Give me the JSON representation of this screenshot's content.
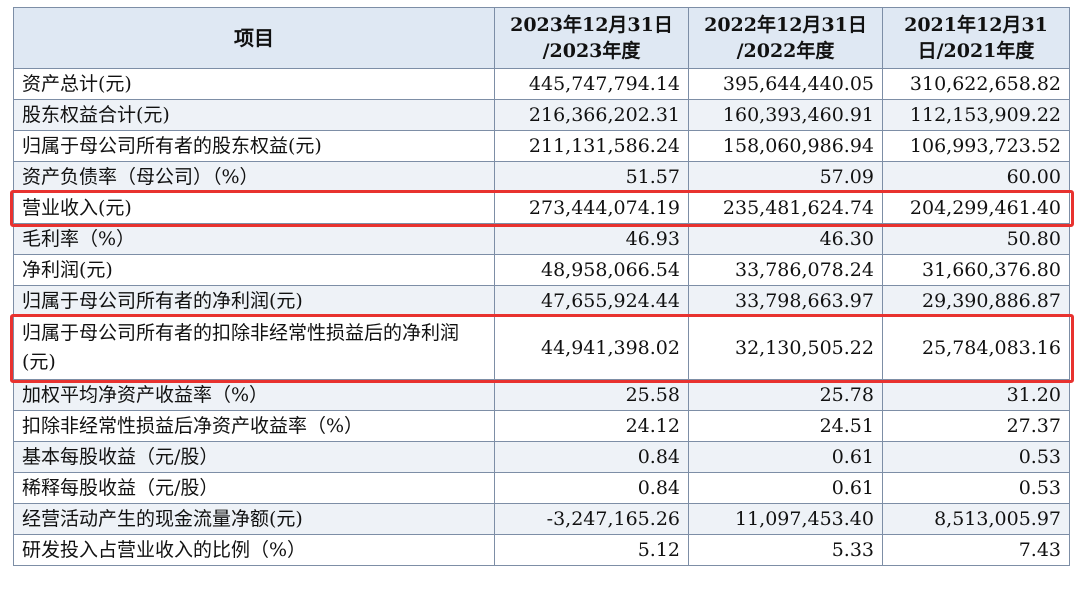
{
  "header": {
    "item": "项目",
    "col1": [
      "2023年12月31日",
      "/2023年度"
    ],
    "col2": [
      "2022年12月31日",
      "/2022年度"
    ],
    "col3": [
      "2021年12月31",
      "日/2021年度"
    ]
  },
  "rows": [
    {
      "label": "资产总计(元)",
      "v2023": "445,747,794.14",
      "v2022": "395,644,440.05",
      "v2021": "310,622,658.82"
    },
    {
      "label": "股东权益合计(元)",
      "v2023": "216,366,202.31",
      "v2022": "160,393,460.91",
      "v2021": "112,153,909.22"
    },
    {
      "label": "归属于母公司所有者的股东权益(元)",
      "v2023": "211,131,586.24",
      "v2022": "158,060,986.94",
      "v2021": "106,993,723.52"
    },
    {
      "label": "资产负债率（母公司）（%）",
      "v2023": "51.57",
      "v2022": "57.09",
      "v2021": "60.00"
    },
    {
      "label": "营业收入(元)",
      "v2023": "273,444,074.19",
      "v2022": "235,481,624.74",
      "v2021": "204,299,461.40"
    },
    {
      "label": "毛利率（%）",
      "v2023": "46.93",
      "v2022": "46.30",
      "v2021": "50.80"
    },
    {
      "label": "净利润(元)",
      "v2023": "48,958,066.54",
      "v2022": "33,786,078.24",
      "v2021": "31,660,376.80"
    },
    {
      "label": "归属于母公司所有者的净利润(元)",
      "v2023": "47,655,924.44",
      "v2022": "33,798,663.97",
      "v2021": "29,390,886.87"
    },
    {
      "label": "归属于母公司所有者的扣除非经常性损益后的净利润(元)",
      "v2023": "44,941,398.02",
      "v2022": "32,130,505.22",
      "v2021": "25,784,083.16"
    },
    {
      "label": "加权平均净资产收益率（%）",
      "v2023": "25.58",
      "v2022": "25.78",
      "v2021": "31.20"
    },
    {
      "label": "扣除非经常性损益后净资产收益率（%）",
      "v2023": "24.12",
      "v2022": "24.51",
      "v2021": "27.37"
    },
    {
      "label": "基本每股收益（元/股）",
      "v2023": "0.84",
      "v2022": "0.61",
      "v2021": "0.53"
    },
    {
      "label": "稀释每股收益（元/股）",
      "v2023": "0.84",
      "v2022": "0.61",
      "v2021": "0.53"
    },
    {
      "label": "经营活动产生的现金流量净额(元)",
      "v2023": "-3,247,165.26",
      "v2022": "11,097,453.40",
      "v2021": "8,513,005.97"
    },
    {
      "label": "研发投入占营业收入的比例（%）",
      "v2023": "5.12",
      "v2022": "5.33",
      "v2021": "7.43"
    }
  ],
  "colors": {
    "header_bg": "#dfe8f3",
    "alt_row_bg": "#eef2f7",
    "grid": "#7d8ea6",
    "highlight": "#e8322f"
  }
}
